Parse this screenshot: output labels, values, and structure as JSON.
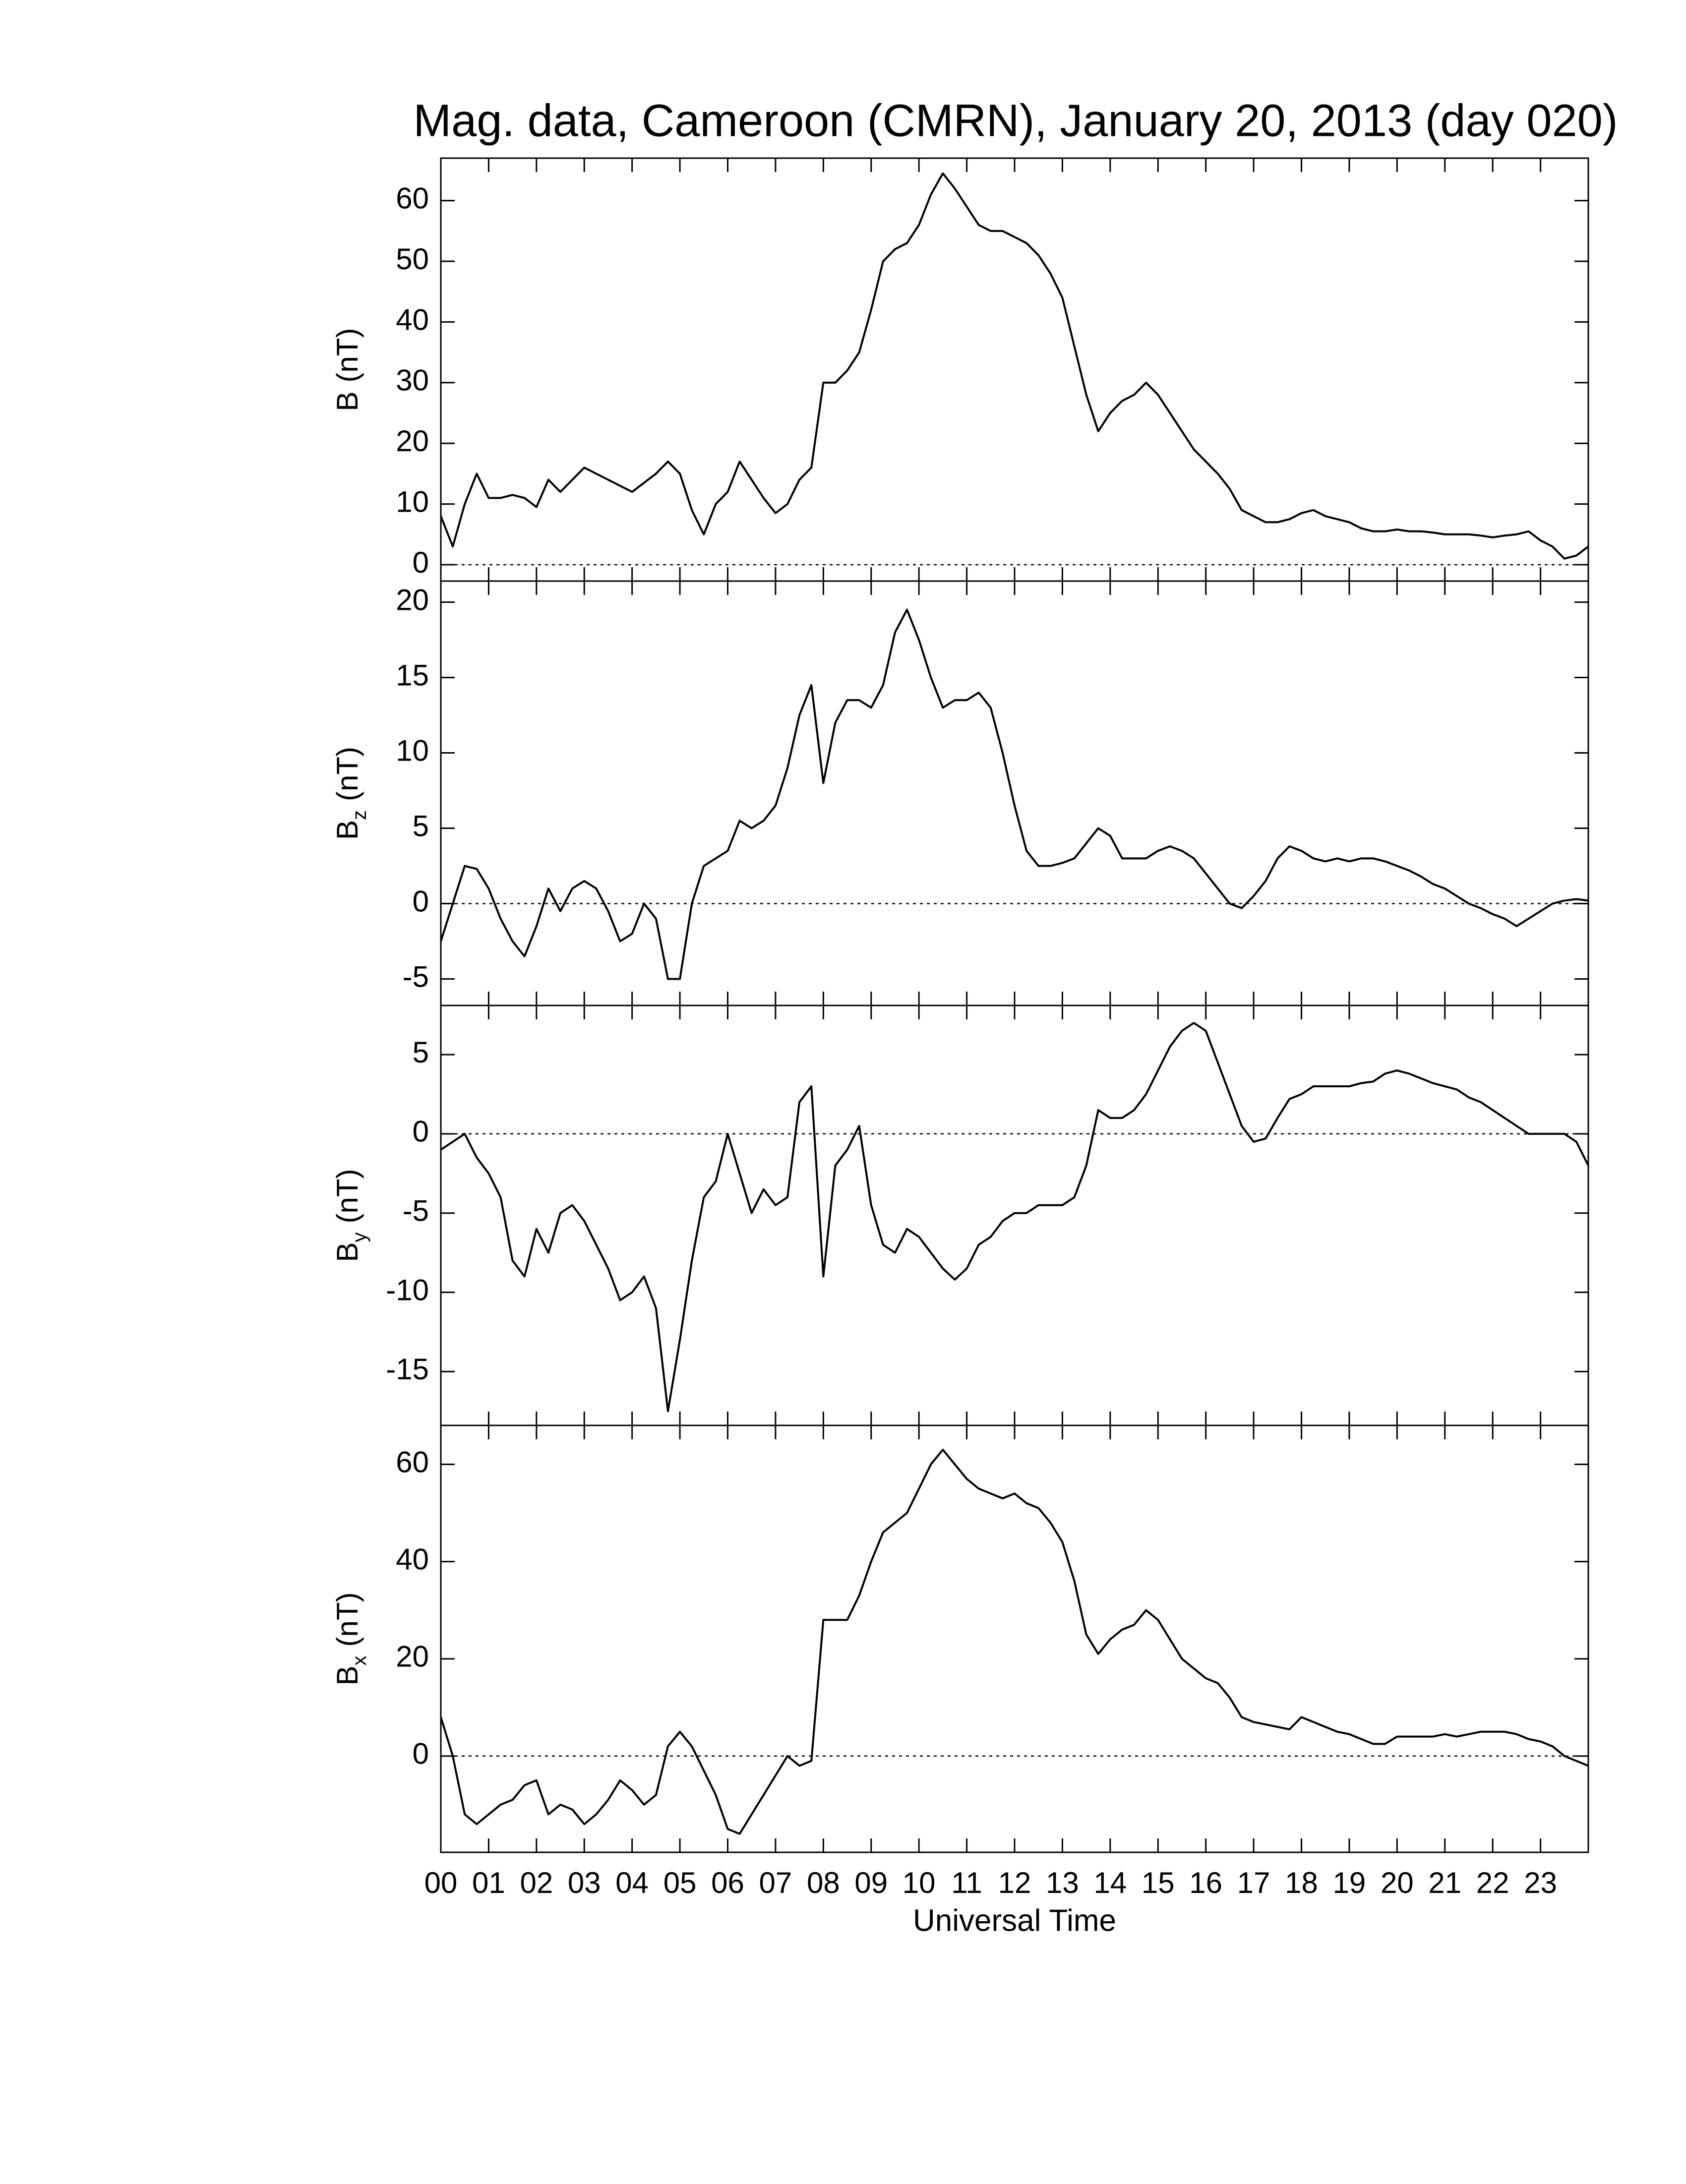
{
  "chart_data": [
    {
      "type": "line",
      "title": "Mag. data, Cameroon (CMRN), January 20, 2013 (day 020)",
      "ylabel": {
        "symbol": "B",
        "unit": "(nT)"
      },
      "x": [
        0,
        0.25,
        0.5,
        0.75,
        1,
        1.25,
        1.5,
        1.75,
        2,
        2.25,
        2.5,
        2.75,
        3,
        3.25,
        3.5,
        3.75,
        4,
        4.25,
        4.5,
        4.75,
        5,
        5.25,
        5.5,
        5.75,
        6,
        6.25,
        6.5,
        6.75,
        7,
        7.25,
        7.5,
        7.75,
        8,
        8.25,
        8.5,
        8.75,
        9,
        9.25,
        9.5,
        9.75,
        10,
        10.25,
        10.5,
        10.75,
        11,
        11.25,
        11.5,
        11.75,
        12,
        12.25,
        12.5,
        12.75,
        13,
        13.25,
        13.5,
        13.75,
        14,
        14.25,
        14.5,
        14.75,
        15,
        15.25,
        15.5,
        15.75,
        16,
        16.25,
        16.5,
        16.75,
        17,
        17.25,
        17.5,
        17.75,
        18,
        18.25,
        18.5,
        18.75,
        19,
        19.25,
        19.5,
        19.75,
        20,
        20.25,
        20.5,
        20.75,
        21,
        21.25,
        21.5,
        21.75,
        22,
        22.25,
        22.5,
        22.75,
        23,
        23.25,
        23.5,
        23.75,
        24
      ],
      "values": [
        8,
        3,
        10,
        15,
        11,
        11,
        11.5,
        11,
        9.5,
        14,
        12,
        14,
        16,
        15,
        14,
        13,
        12,
        13.5,
        15,
        17,
        15,
        9,
        5,
        10,
        12,
        17,
        14,
        11,
        8.5,
        10,
        14,
        16,
        30,
        30,
        32,
        35,
        42,
        50,
        52,
        53,
        56,
        61,
        64.5,
        62,
        59,
        56,
        55,
        55,
        54,
        53,
        51,
        48,
        44,
        36,
        28,
        22,
        25,
        27,
        28,
        30,
        28,
        25,
        22,
        19,
        17,
        15,
        12.5,
        9,
        8,
        7,
        7,
        7.5,
        8.5,
        9,
        8,
        7.5,
        7,
        6,
        5.5,
        5.5,
        5.8,
        5.5,
        5.5,
        5.3,
        5,
        5,
        5,
        4.8,
        4.5,
        4.8,
        5,
        5.5,
        4,
        3,
        1,
        1.5,
        3
      ],
      "color": "#000000",
      "xlim": [
        0,
        24
      ],
      "xticks": [
        0,
        1,
        2,
        3,
        4,
        5,
        6,
        7,
        8,
        9,
        10,
        11,
        12,
        13,
        14,
        15,
        16,
        17,
        18,
        19,
        20,
        21,
        22,
        23
      ],
      "ylim": [
        -2.7,
        67
      ],
      "yticks": [
        0,
        10,
        20,
        30,
        40,
        50,
        60
      ],
      "zero_line": true
    },
    {
      "type": "line",
      "ylabel": {
        "symbol": "B",
        "subscript": "z",
        "unit": "(nT)"
      },
      "x": [
        0,
        0.25,
        0.5,
        0.75,
        1,
        1.25,
        1.5,
        1.75,
        2,
        2.25,
        2.5,
        2.75,
        3,
        3.25,
        3.5,
        3.75,
        4,
        4.25,
        4.5,
        4.75,
        5,
        5.25,
        5.5,
        5.75,
        6,
        6.25,
        6.5,
        6.75,
        7,
        7.25,
        7.5,
        7.75,
        8,
        8.25,
        8.5,
        8.75,
        9,
        9.25,
        9.5,
        9.75,
        10,
        10.25,
        10.5,
        10.75,
        11,
        11.25,
        11.5,
        11.75,
        12,
        12.25,
        12.5,
        12.75,
        13,
        13.25,
        13.5,
        13.75,
        14,
        14.25,
        14.5,
        14.75,
        15,
        15.25,
        15.5,
        15.75,
        16,
        16.25,
        16.5,
        16.75,
        17,
        17.25,
        17.5,
        17.75,
        18,
        18.25,
        18.5,
        18.75,
        19,
        19.25,
        19.5,
        19.75,
        20,
        20.25,
        20.5,
        20.75,
        21,
        21.25,
        21.5,
        21.75,
        22,
        22.25,
        22.5,
        22.75,
        23,
        23.25,
        23.5,
        23.75,
        24
      ],
      "values": [
        -2.5,
        0,
        2.5,
        2.3,
        1,
        -1,
        -2.5,
        -3.5,
        -1.5,
        1,
        -0.5,
        1,
        1.5,
        1,
        -0.5,
        -2.5,
        -2,
        0,
        -1,
        -5,
        -5,
        0,
        2.5,
        3,
        3.5,
        5.5,
        5,
        5.5,
        6.5,
        9,
        12.5,
        14.5,
        8,
        12,
        13.5,
        13.5,
        13,
        14.5,
        18,
        19.5,
        17.5,
        15,
        13,
        13.5,
        13.5,
        14,
        13,
        10,
        6.5,
        3.5,
        2.5,
        2.5,
        2.7,
        3,
        4,
        5,
        4.5,
        3,
        3,
        3,
        3.5,
        3.8,
        3.5,
        3,
        2,
        1,
        0,
        -0.3,
        0.5,
        1.5,
        3,
        3.8,
        3.5,
        3,
        2.8,
        3,
        2.8,
        3,
        3,
        2.8,
        2.5,
        2.2,
        1.8,
        1.3,
        1,
        0.5,
        0,
        -0.3,
        -0.7,
        -1,
        -1.5,
        -1,
        -0.5,
        0,
        0.2,
        0.3,
        0.2
      ],
      "color": "#000000",
      "xlim": [
        0,
        24
      ],
      "xticks": [
        0,
        1,
        2,
        3,
        4,
        5,
        6,
        7,
        8,
        9,
        10,
        11,
        12,
        13,
        14,
        15,
        16,
        17,
        18,
        19,
        20,
        21,
        22,
        23
      ],
      "ylim": [
        -6.76,
        21.4
      ],
      "yticks": [
        -5,
        0,
        5,
        10,
        15,
        20
      ],
      "zero_line": true
    },
    {
      "type": "line",
      "ylabel": {
        "symbol": "B",
        "subscript": "y",
        "unit": "(nT)"
      },
      "x": [
        0,
        0.25,
        0.5,
        0.75,
        1,
        1.25,
        1.5,
        1.75,
        2,
        2.25,
        2.5,
        2.75,
        3,
        3.25,
        3.5,
        3.75,
        4,
        4.25,
        4.5,
        4.75,
        5,
        5.25,
        5.5,
        5.75,
        6,
        6.25,
        6.5,
        6.75,
        7,
        7.25,
        7.5,
        7.75,
        8,
        8.25,
        8.5,
        8.75,
        9,
        9.25,
        9.5,
        9.75,
        10,
        10.25,
        10.5,
        10.75,
        11,
        11.25,
        11.5,
        11.75,
        12,
        12.25,
        12.5,
        12.75,
        13,
        13.25,
        13.5,
        13.75,
        14,
        14.25,
        14.5,
        14.75,
        15,
        15.25,
        15.5,
        15.75,
        16,
        16.25,
        16.5,
        16.75,
        17,
        17.25,
        17.5,
        17.75,
        18,
        18.25,
        18.5,
        18.75,
        19,
        19.25,
        19.5,
        19.75,
        20,
        20.25,
        20.5,
        20.75,
        21,
        21.25,
        21.5,
        21.75,
        22,
        22.25,
        22.5,
        22.75,
        23,
        23.25,
        23.5,
        23.75,
        24
      ],
      "values": [
        -1,
        -0.5,
        0,
        -1.5,
        -2.5,
        -4,
        -8,
        -9,
        -6,
        -7.5,
        -5,
        -4.5,
        -5.5,
        -7,
        -8.5,
        -10.5,
        -10,
        -9,
        -11,
        -17.5,
        -13,
        -8,
        -4,
        -3,
        0,
        -2.5,
        -5,
        -3.5,
        -4.5,
        -4,
        2,
        3,
        -9,
        -2,
        -1,
        0.5,
        -4.5,
        -7,
        -7.5,
        -6,
        -6.5,
        -7.5,
        -8.5,
        -9.2,
        -8.5,
        -7,
        -6.5,
        -5.5,
        -5,
        -5,
        -4.5,
        -4.5,
        -4.5,
        -4,
        -2,
        1.5,
        1,
        1,
        1.5,
        2.5,
        4,
        5.5,
        6.5,
        7,
        6.5,
        4.5,
        2.5,
        0.5,
        -0.5,
        -0.3,
        1,
        2.2,
        2.5,
        3,
        3,
        3,
        3,
        3.2,
        3.3,
        3.8,
        4,
        3.8,
        3.5,
        3.2,
        3,
        2.8,
        2.3,
        2,
        1.5,
        1,
        0.5,
        0,
        0,
        0,
        0,
        -0.5,
        -2
      ],
      "color": "#000000",
      "xlim": [
        0,
        24
      ],
      "xticks": [
        0,
        1,
        2,
        3,
        4,
        5,
        6,
        7,
        8,
        9,
        10,
        11,
        12,
        13,
        14,
        15,
        16,
        17,
        18,
        19,
        20,
        21,
        22,
        23
      ],
      "ylim": [
        -18.4,
        8.1
      ],
      "yticks": [
        -15,
        -10,
        -5,
        0,
        5
      ],
      "zero_line": true
    },
    {
      "type": "line",
      "ylabel": {
        "symbol": "B",
        "subscript": "x",
        "unit": "(nT)"
      },
      "xlabel": "Universal Time",
      "x": [
        0,
        0.25,
        0.5,
        0.75,
        1,
        1.25,
        1.5,
        1.75,
        2,
        2.25,
        2.5,
        2.75,
        3,
        3.25,
        3.5,
        3.75,
        4,
        4.25,
        4.5,
        4.75,
        5,
        5.25,
        5.5,
        5.75,
        6,
        6.25,
        6.5,
        6.75,
        7,
        7.25,
        7.5,
        7.75,
        8,
        8.25,
        8.5,
        8.75,
        9,
        9.25,
        9.5,
        9.75,
        10,
        10.25,
        10.5,
        10.75,
        11,
        11.25,
        11.5,
        11.75,
        12,
        12.25,
        12.5,
        12.75,
        13,
        13.25,
        13.5,
        13.75,
        14,
        14.25,
        14.5,
        14.75,
        15,
        15.25,
        15.5,
        15.75,
        16,
        16.25,
        16.5,
        16.75,
        17,
        17.25,
        17.5,
        17.75,
        18,
        18.25,
        18.5,
        18.75,
        19,
        19.25,
        19.5,
        19.75,
        20,
        20.25,
        20.5,
        20.75,
        21,
        21.25,
        21.5,
        21.75,
        22,
        22.25,
        22.5,
        22.75,
        23,
        23.25,
        23.5,
        23.75,
        24
      ],
      "values": [
        8,
        0,
        -12,
        -14,
        -12,
        -10,
        -9,
        -6,
        -5,
        -12,
        -10,
        -11,
        -14,
        -12,
        -9,
        -5,
        -7,
        -10,
        -8,
        2,
        5,
        2,
        -3,
        -8,
        -15,
        -16,
        -12,
        -8,
        -4,
        0,
        -2,
        -1,
        28,
        28,
        28,
        33,
        40,
        46,
        48,
        50,
        55,
        60,
        63,
        60,
        57,
        55,
        54,
        53,
        54,
        52,
        51,
        48,
        44,
        36,
        25,
        21,
        24,
        26,
        27,
        30,
        28,
        24,
        20,
        18,
        16,
        15,
        12,
        8,
        7,
        6.5,
        6,
        5.5,
        8,
        7,
        6,
        5,
        4.5,
        3.5,
        2.5,
        2.5,
        4,
        4,
        4,
        4,
        4.5,
        4,
        4.5,
        5,
        5,
        5,
        4.5,
        3.5,
        3,
        2,
        0,
        -1,
        -2
      ],
      "color": "#000000",
      "xlim": [
        0,
        24
      ],
      "xticks": [
        {
          "value": 0,
          "label": "00"
        },
        {
          "value": 1,
          "label": "01"
        },
        {
          "value": 2,
          "label": "02"
        },
        {
          "value": 3,
          "label": "03"
        },
        {
          "value": 4,
          "label": "04"
        },
        {
          "value": 5,
          "label": "05"
        },
        {
          "value": 6,
          "label": "06"
        },
        {
          "value": 7,
          "label": "07"
        },
        {
          "value": 8,
          "label": "08"
        },
        {
          "value": 9,
          "label": "09"
        },
        {
          "value": 10,
          "label": "10"
        },
        {
          "value": 11,
          "label": "11"
        },
        {
          "value": 12,
          "label": "12"
        },
        {
          "value": 13,
          "label": "13"
        },
        {
          "value": 14,
          "label": "14"
        },
        {
          "value": 15,
          "label": "15"
        },
        {
          "value": 16,
          "label": "16"
        },
        {
          "value": 17,
          "label": "17"
        },
        {
          "value": 18,
          "label": "18"
        },
        {
          "value": 19,
          "label": "19"
        },
        {
          "value": 20,
          "label": "20"
        },
        {
          "value": 21,
          "label": "21"
        },
        {
          "value": 22,
          "label": "22"
        },
        {
          "value": 23,
          "label": "23"
        }
      ],
      "ylim": [
        -19.8,
        68
      ],
      "yticks": [
        0,
        20,
        40,
        60
      ],
      "zero_line": true
    }
  ]
}
